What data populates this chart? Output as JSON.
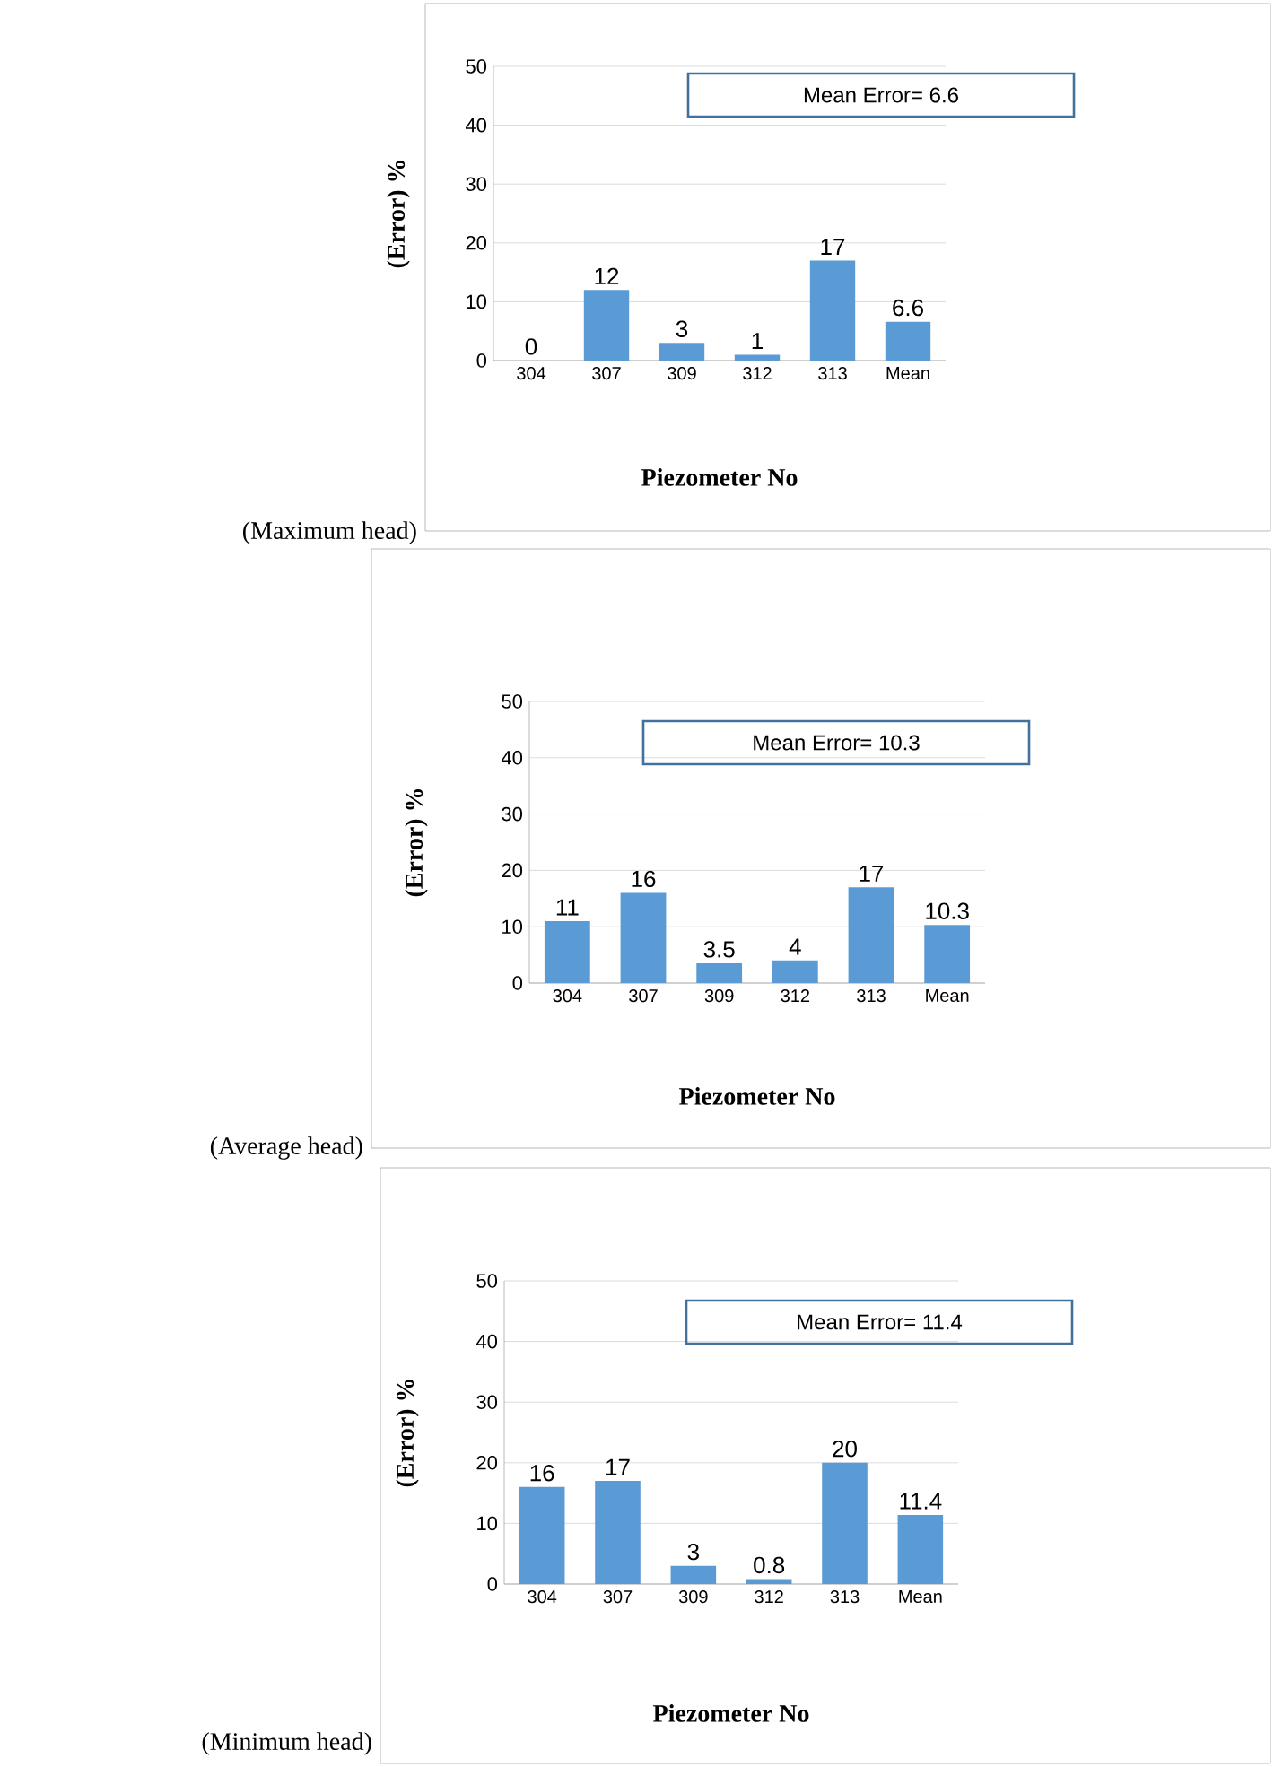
{
  "chart_data": [
    {
      "type": "bar",
      "categories": [
        "304",
        "307",
        "309",
        "312",
        "313",
        "Mean"
      ],
      "values": [
        0,
        12,
        3,
        1,
        17,
        6.6
      ],
      "color": "#5b9bd5",
      "ylim": [
        0,
        50
      ],
      "yticks": [
        0,
        10,
        20,
        30,
        40,
        50
      ],
      "grid": "y",
      "data_labels": true,
      "xlabel": "Piezometer No",
      "ylabel": "(Error) %",
      "annotations": [
        "Mean Error= 6.6",
        "(Maximum head)"
      ]
    },
    {
      "type": "bar",
      "categories": [
        "304",
        "307",
        "309",
        "312",
        "313",
        "Mean"
      ],
      "values": [
        11,
        16,
        3.5,
        4,
        17,
        10.3
      ],
      "color": "#5b9bd5",
      "ylim": [
        0,
        50
      ],
      "yticks": [
        0,
        10,
        20,
        30,
        40,
        50
      ],
      "grid": "y",
      "data_labels": true,
      "xlabel": "Piezometer No",
      "ylabel": "(Error) %",
      "annotations": [
        "Mean Error= 10.3",
        "(Average head)"
      ]
    },
    {
      "type": "bar",
      "categories": [
        "304",
        "307",
        "309",
        "312",
        "313",
        "Mean"
      ],
      "values": [
        16,
        17,
        3,
        0.8,
        20,
        11.4
      ],
      "color": "#5b9bd5",
      "ylim": [
        0,
        50
      ],
      "yticks": [
        0,
        10,
        20,
        30,
        40,
        50
      ],
      "grid": "y",
      "data_labels": true,
      "xlabel": "Piezometer No",
      "ylabel": "(Error) %",
      "annotations": [
        "Mean Error= 11.4",
        "(Minimum head)"
      ]
    }
  ]
}
